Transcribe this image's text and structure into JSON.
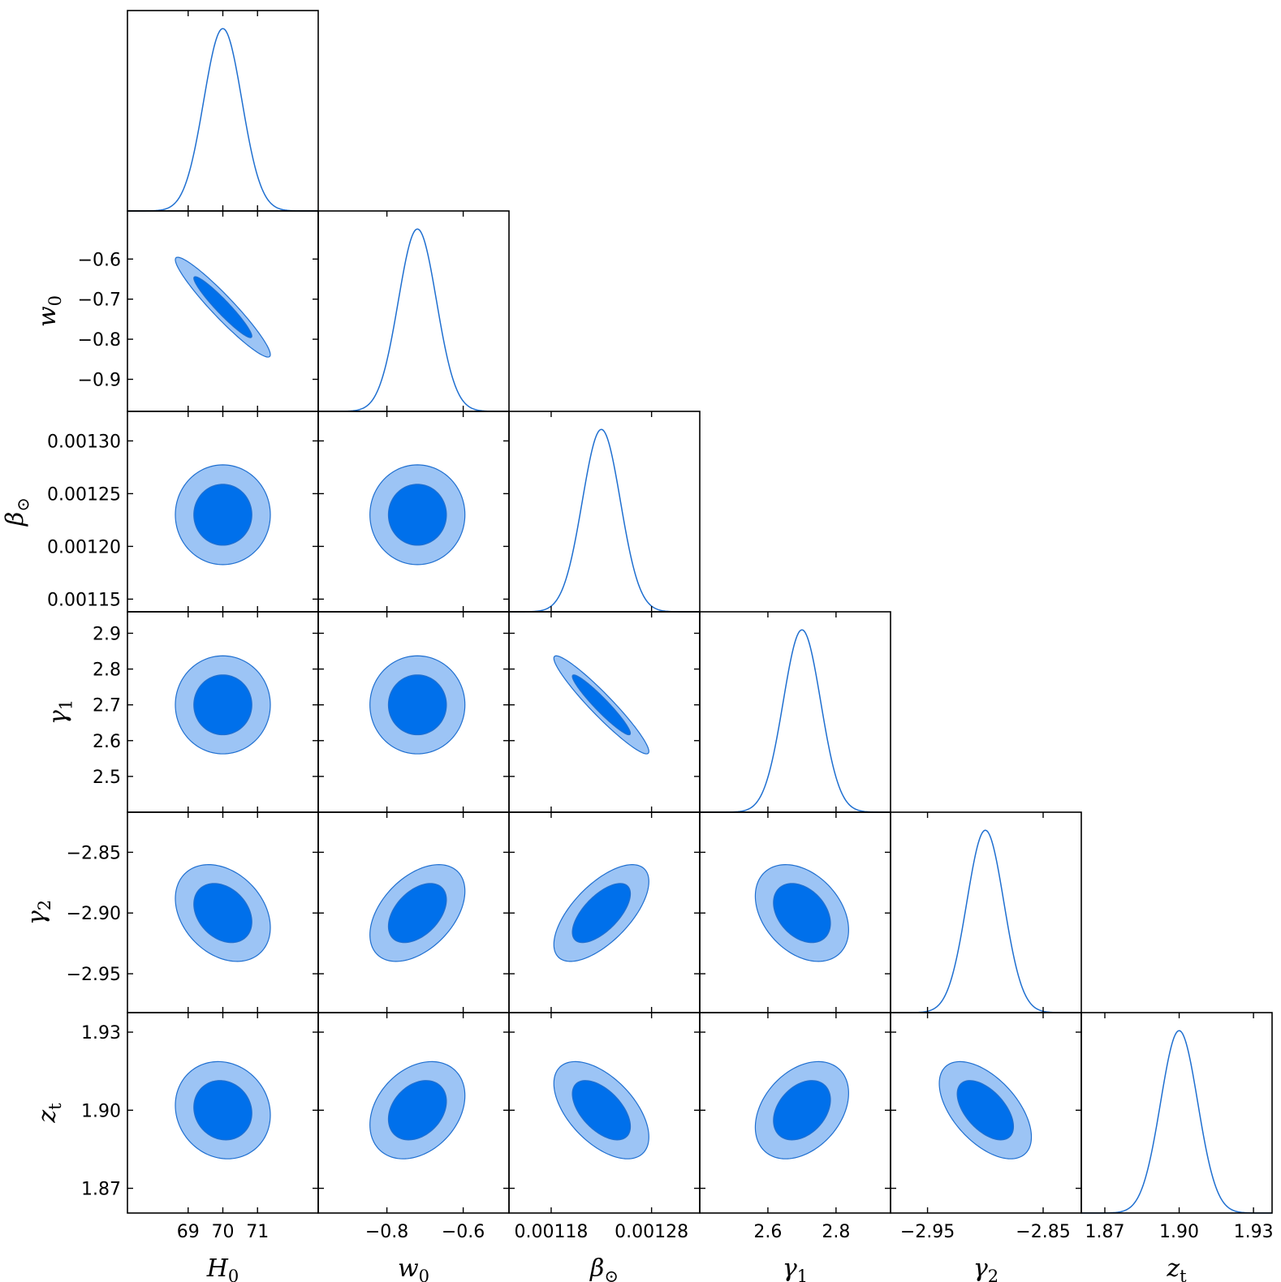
{
  "chart_data": {
    "type": "corner",
    "color_line": "#1f6fd0",
    "color_inner": "#0070eb",
    "color_outer": "#9cc4f5",
    "params": [
      {
        "key": "H0",
        "label_main": "H",
        "label_sub": "0",
        "range": [
          67.25,
          72.75
        ],
        "ticks": [
          69,
          70,
          71
        ],
        "tick_labels": [
          "69",
          "70",
          "71"
        ],
        "mean": 70.0,
        "sigma": 0.55
      },
      {
        "key": "w0",
        "label_main": "w",
        "label_sub": "0",
        "range": [
          -0.98,
          -0.48
        ],
        "ticks": [
          -0.9,
          -0.8,
          -0.7,
          -0.6
        ],
        "tick_labels": [
          "−0.9",
          "−0.8",
          "−0.7",
          "−0.6"
        ],
        "x_ticks": [
          -0.8,
          -0.6
        ],
        "x_tick_labels": [
          "−0.8",
          "−0.6"
        ],
        "mean": -0.72,
        "sigma": 0.05
      },
      {
        "key": "beta",
        "label_main": "β",
        "label_sub": "⊙",
        "range": [
          0.001138,
          0.001328
        ],
        "ticks": [
          0.00115,
          0.0012,
          0.00125,
          0.0013
        ],
        "tick_labels": [
          "0.00115",
          "0.00120",
          "0.00125",
          "0.00130"
        ],
        "x_ticks": [
          0.00118,
          0.00128
        ],
        "x_tick_labels": [
          "0.00118",
          "0.00128"
        ],
        "mean": 0.00123,
        "sigma": 1.9e-05
      },
      {
        "key": "gamma1",
        "label_main": "γ",
        "label_sub": "1",
        "range": [
          2.4,
          2.96
        ],
        "ticks": [
          2.5,
          2.6,
          2.7,
          2.8,
          2.9
        ],
        "tick_labels": [
          "2.5",
          "2.6",
          "2.7",
          "2.8",
          "2.9"
        ],
        "x_ticks": [
          2.6,
          2.8
        ],
        "x_tick_labels": [
          "2.6",
          "2.8"
        ],
        "mean": 2.7,
        "sigma": 0.055
      },
      {
        "key": "gamma2",
        "label_main": "γ",
        "label_sub": "2",
        "range": [
          -2.982,
          -2.817
        ],
        "ticks": [
          -2.95,
          -2.9,
          -2.85
        ],
        "tick_labels": [
          "−2.95",
          "−2.90",
          "−2.85"
        ],
        "x_ticks": [
          -2.95,
          -2.85
        ],
        "x_tick_labels": [
          "−2.95",
          "−2.85"
        ],
        "mean": -2.9,
        "sigma": 0.016
      },
      {
        "key": "zt",
        "label_main": "z",
        "label_sub": "t",
        "range": [
          1.8605,
          1.9375
        ],
        "ticks": [
          1.87,
          1.9,
          1.93
        ],
        "tick_labels": [
          "1.87",
          "1.90",
          "1.93"
        ],
        "mean": 1.9,
        "sigma": 0.0075
      }
    ],
    "correlations": [
      [
        1.0,
        -0.95,
        0.0,
        0.0,
        -0.3,
        -0.1
      ],
      [
        -0.95,
        1.0,
        0.0,
        0.0,
        0.45,
        0.3
      ],
      [
        0.0,
        0.0,
        1.0,
        -0.95,
        0.65,
        -0.55
      ],
      [
        0.0,
        0.0,
        -0.95,
        1.0,
        -0.35,
        0.35
      ],
      [
        -0.3,
        0.45,
        0.65,
        -0.35,
        1.0,
        -0.55
      ],
      [
        -0.1,
        0.3,
        -0.55,
        0.35,
        -0.55,
        1.0
      ]
    ]
  }
}
